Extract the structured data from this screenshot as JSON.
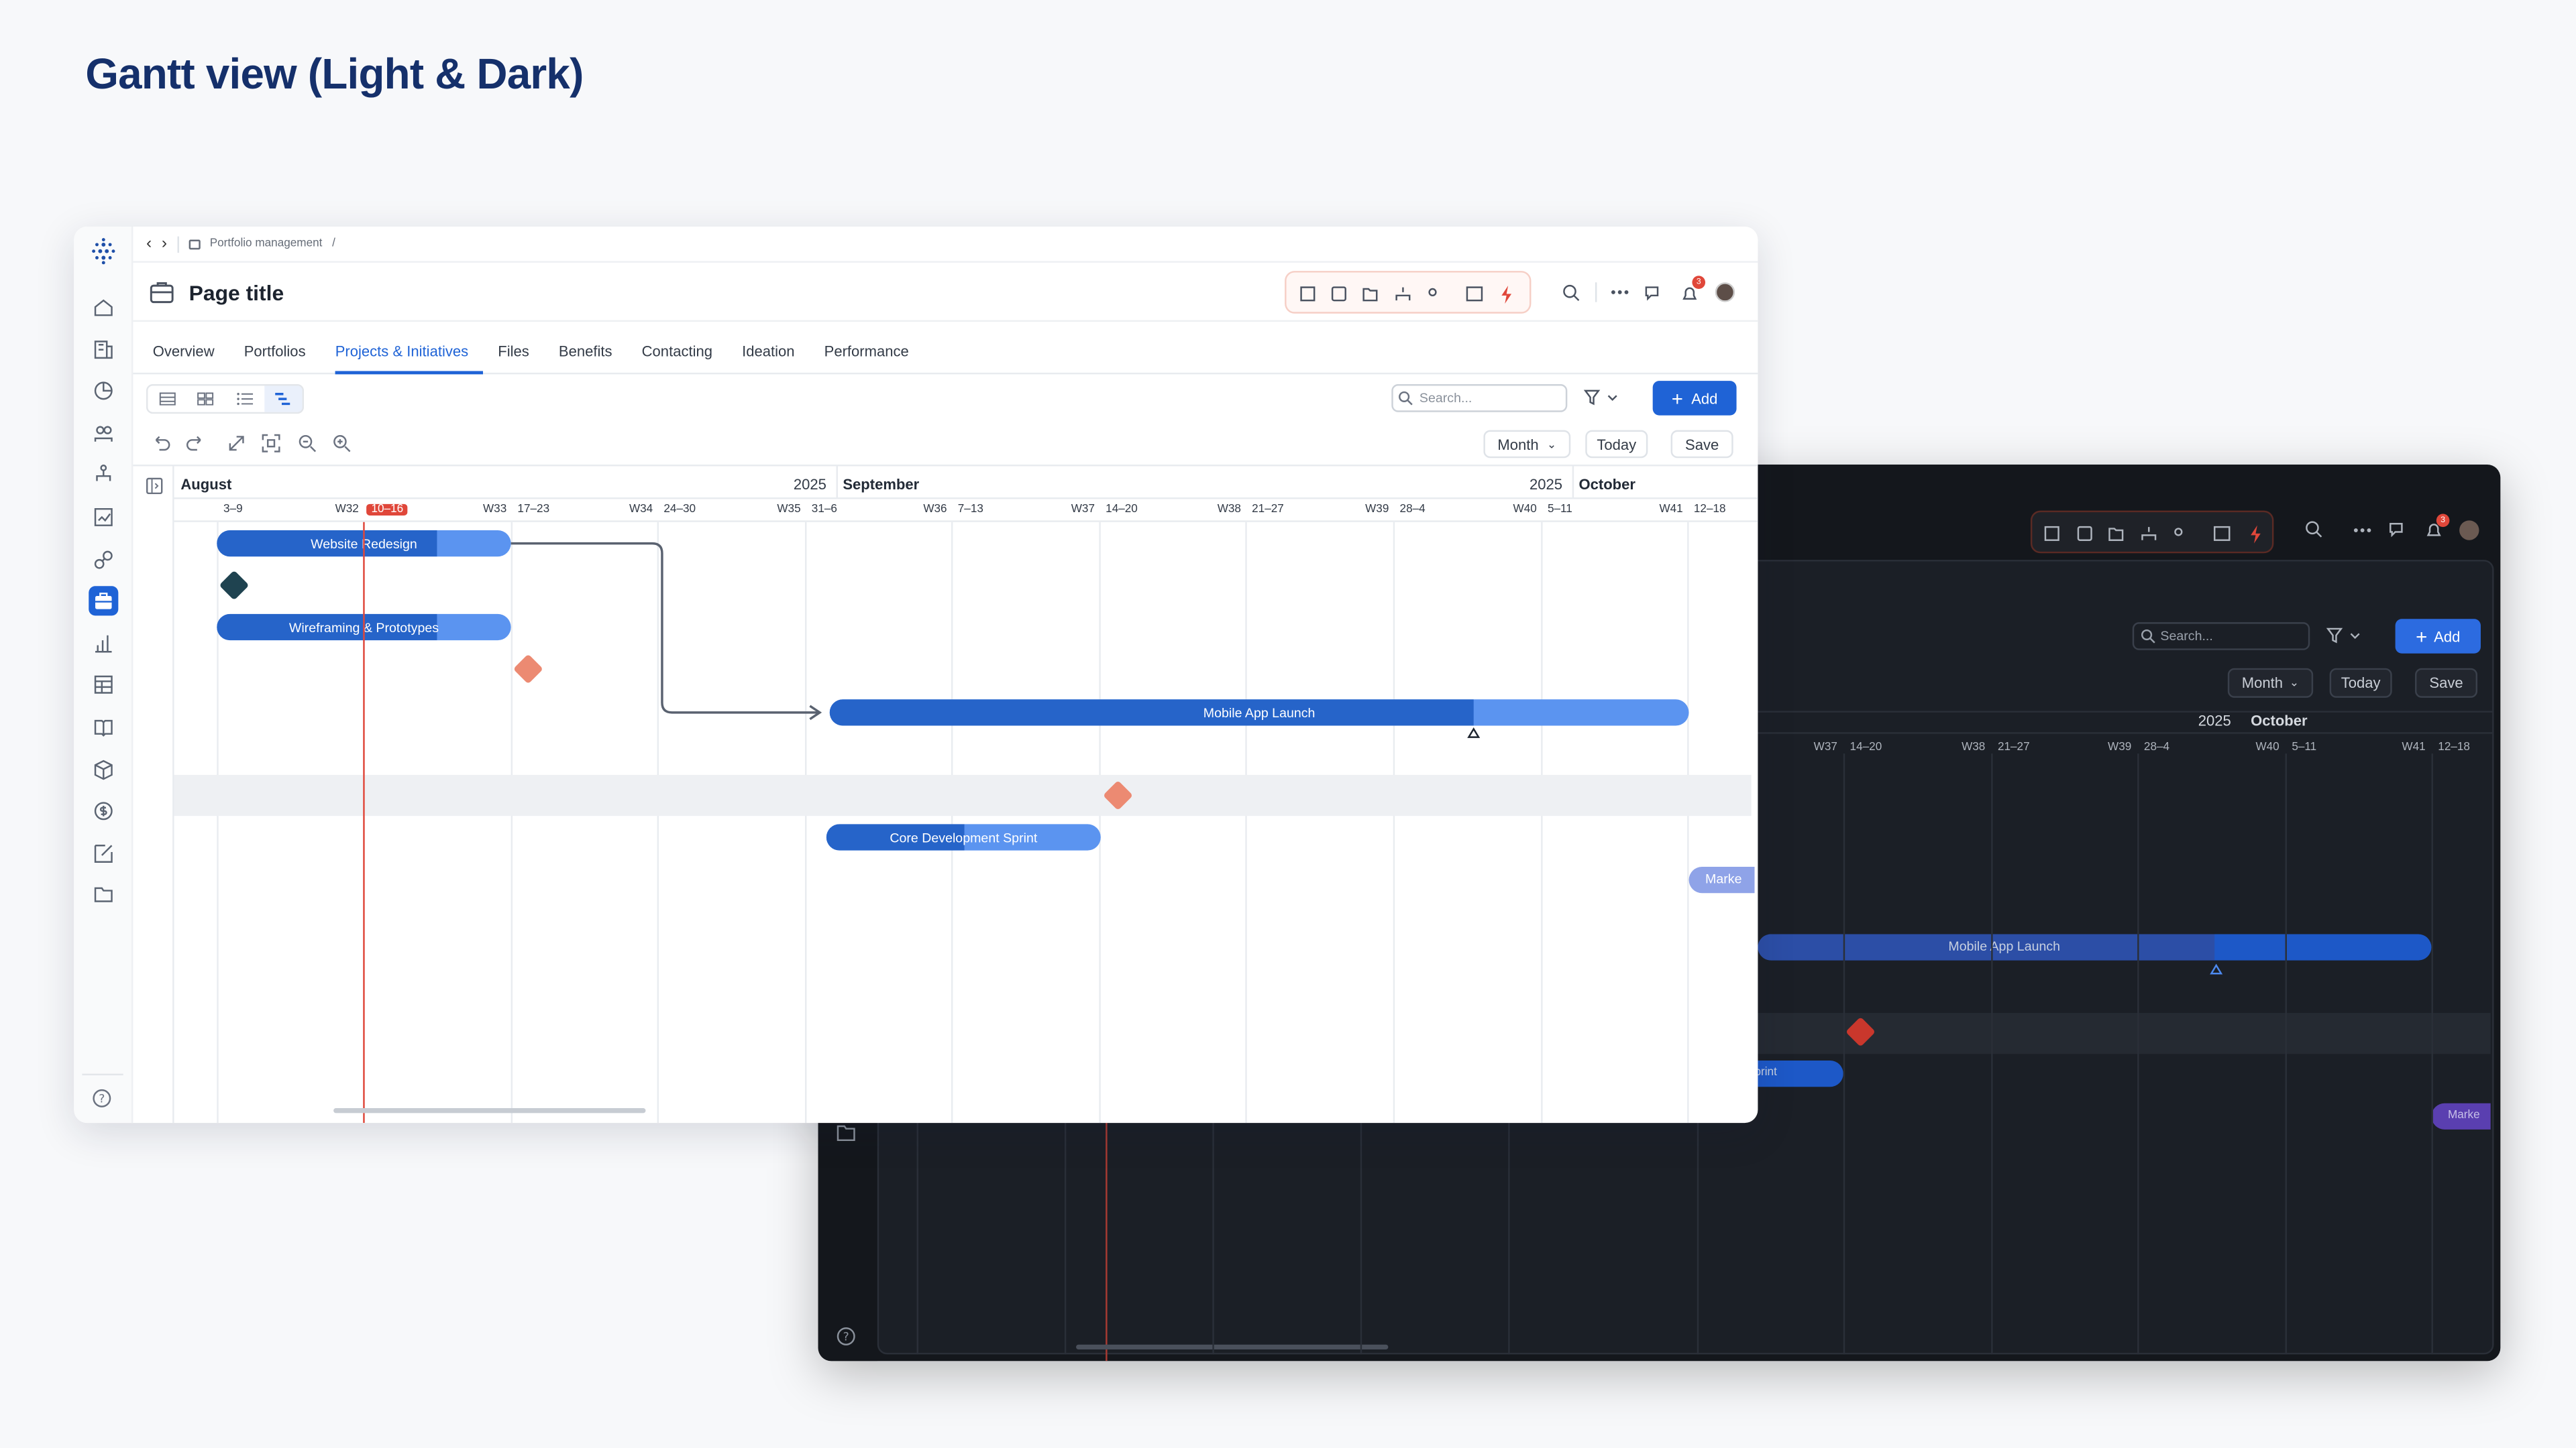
{
  "page_heading": "Gantt view (Light & Dark)",
  "colors": {
    "accent": "#1f63d6",
    "bar_dark": "#2664c9",
    "bar_light": "#5b94f0",
    "today": "#e0473a",
    "milestone": "#ec8a72",
    "milestone_dark": "#1f4350",
    "dark_milestone": "#c9372c",
    "marketing": "#8fa3e8",
    "marketing_dark": "#5a3fb0"
  },
  "light": {
    "breadcrumb": "Portfolio management",
    "breadcrumb_sep": "/",
    "title": "Page title",
    "notification_count": "3",
    "tabs": [
      "Overview",
      "Portfolios",
      "Projects & Initiatives",
      "Files",
      "Benefits",
      "Contacting",
      "Ideation",
      "Performance"
    ],
    "active_tab": "Projects & Initiatives",
    "search_placeholder": "Search...",
    "add_label": "Add",
    "scale_label": "Month",
    "today_label": "Today",
    "save_label": "Save",
    "months": [
      "August",
      "September",
      "October"
    ],
    "years": [
      "2025",
      "2025"
    ],
    "weeks": [
      "3–9",
      "W32",
      "10–16",
      "W33",
      "17–23",
      "W34",
      "24–30",
      "W35",
      "31–6",
      "W36",
      "7–13",
      "W37",
      "14–20",
      "W38",
      "21–27",
      "W39",
      "28–4",
      "W40",
      "5–11",
      "W41",
      "12–18"
    ],
    "today_week": "10–16",
    "tasks": [
      {
        "name": "Website Redesign",
        "progress": 0.75
      },
      {
        "name": "Wireframing & Prototypes",
        "progress": 0.75
      },
      {
        "name": "Mobile App Launch",
        "progress": 0.75
      },
      {
        "name": "Core Development Sprint",
        "progress": 0.5
      },
      {
        "name": "Marke"
      }
    ]
  },
  "dark": {
    "notification_count": "3",
    "search_placeholder": "Search...",
    "add_label": "Add",
    "scale_label": "Month",
    "today_label": "Today",
    "save_label": "Save",
    "year": "2025",
    "month": "October",
    "weeks": [
      "W37",
      "14–20",
      "W38",
      "21–27",
      "W39",
      "28–4",
      "W40",
      "5–11",
      "W41",
      "12–18"
    ],
    "tasks": [
      {
        "name": "Mobile App Launch"
      },
      {
        "name": "print"
      },
      {
        "name": "Marke"
      }
    ]
  }
}
